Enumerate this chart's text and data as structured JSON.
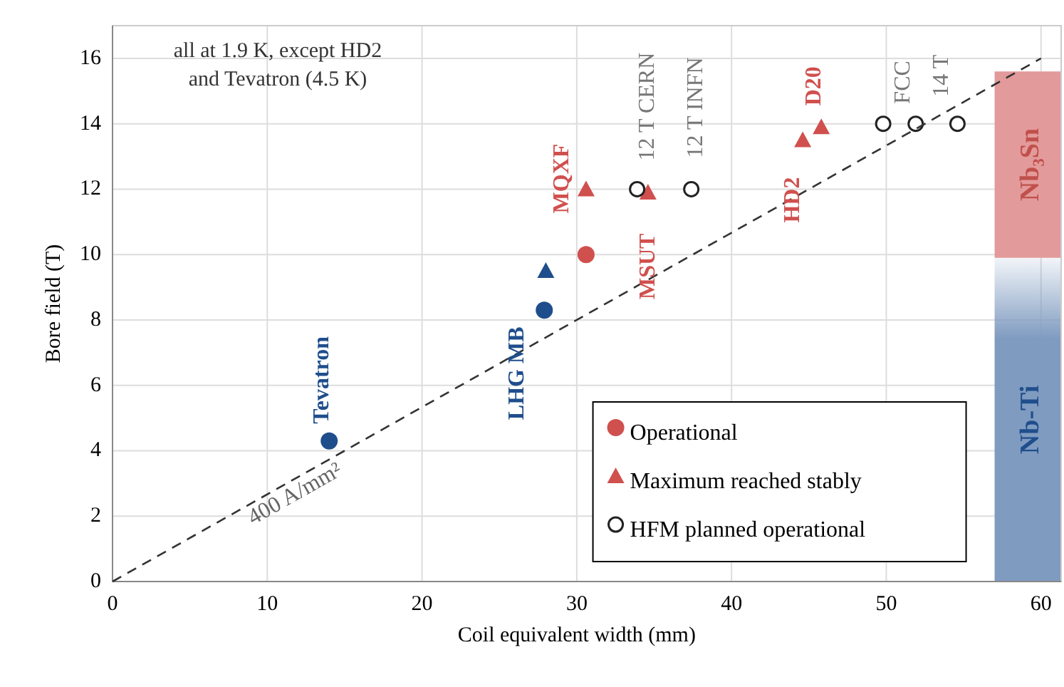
{
  "chart_data": {
    "type": "scatter",
    "xlabel": "Coil equivalent width (mm)",
    "ylabel": "Bore field (T)",
    "xlim": [
      0,
      61.3
    ],
    "ylim": [
      0,
      17
    ],
    "xticks": [
      0,
      10,
      20,
      30,
      40,
      50,
      60
    ],
    "yticks": [
      0,
      2,
      4,
      6,
      8,
      10,
      12,
      14,
      16
    ],
    "grid": true,
    "legend": "bottom right",
    "series": [
      {
        "name": "Operational",
        "marker": "circle",
        "color": "#d0504e",
        "x": [
          14,
          27.9,
          30.6
        ],
        "values": [
          4.3,
          8.3,
          10
        ],
        "colors": [
          "#1f4e8c",
          "#1f4e8c",
          "#d0504e"
        ]
      },
      {
        "name": "Maximum reached stably",
        "marker": "triangle",
        "color": "#d0504e",
        "x": [
          28,
          30.6,
          34.6,
          44.6,
          45.8
        ],
        "values": [
          9.5,
          12,
          11.9,
          13.5,
          13.9
        ],
        "colors": [
          "#1f4e8c",
          "#d0504e",
          "#d0504e",
          "#d0504e",
          "#d0504e"
        ]
      },
      {
        "name": "HFM planned operational",
        "marker": "circle",
        "color": "#222222",
        "x": [
          33.9,
          37.4,
          49.8,
          51.9,
          54.6
        ],
        "values": [
          12,
          12,
          14,
          14,
          14
        ]
      },
      {
        "type": "line",
        "name": "400 A/mm²",
        "x": [
          0,
          60
        ],
        "values": [
          0,
          16
        ],
        "color": "#333333",
        "line_style": "dashed",
        "marker": "none"
      }
    ],
    "bands": [
      {
        "axis": "y",
        "from": 9.9,
        "to": 15.6,
        "label": "Nb₃Sn",
        "color": "#e39a9a"
      },
      {
        "axis": "y",
        "from": 0,
        "to": 9.9,
        "label": "Nb-Ti",
        "color": "#7f9bc0"
      }
    ],
    "annotations": [
      "all at 1.9 K, except HD2 and Tevatron (4.5 K)",
      {
        "text": "Tevatron",
        "x": 14,
        "y": 4.3
      },
      {
        "text": "LHG MB",
        "x": 27.9,
        "y": 8.3
      },
      {
        "text": "MQXF",
        "x": 30.6,
        "y": 12
      },
      {
        "text": "MSUT",
        "x": 34.6,
        "y": 11.9
      },
      {
        "text": "HD2",
        "x": 44.6,
        "y": 13.5
      },
      {
        "text": "D20",
        "x": 45.8,
        "y": 13.9
      },
      {
        "text": "12 T CERN",
        "x": 33.9,
        "y": 12
      },
      {
        "text": "12 T INFN",
        "x": 37.4,
        "y": 12
      },
      {
        "text": "FCC",
        "x": 49.8,
        "y": 14
      },
      {
        "text": "14 T",
        "x": 54.6,
        "y": 14
      }
    ]
  }
}
